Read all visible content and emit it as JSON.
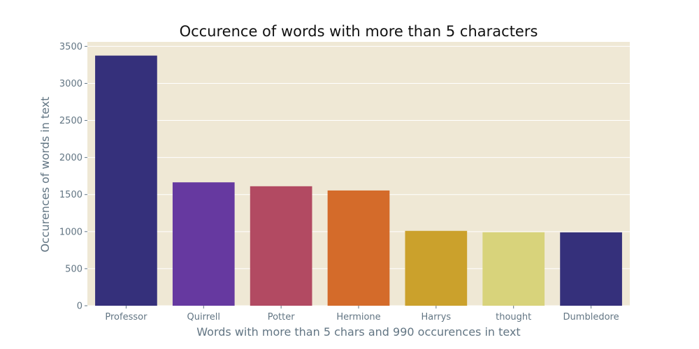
{
  "chart_data": {
    "type": "bar",
    "title": "Occurence of words with more than 5  characters",
    "xlabel": "Words with more than 5 chars and 990 occurences in text",
    "ylabel": "Occurences of words in text",
    "categories": [
      "Professor",
      "Quirrell",
      "Potter",
      "Hermione",
      "Harrys",
      "thought",
      "Dumbledore"
    ],
    "values": [
      3375,
      1665,
      1612,
      1555,
      1010,
      992,
      990
    ],
    "ylim": [
      0,
      3560
    ],
    "yticks": [
      0,
      500,
      1000,
      1500,
      2000,
      2500,
      3000,
      3500
    ],
    "grid": true,
    "background_color": "#efe8d5",
    "bar_colors": [
      "#35307b",
      "#6639a0",
      "#b24a62",
      "#d46b2a",
      "#cba12c",
      "#d8d37b",
      "#35307b"
    ]
  }
}
